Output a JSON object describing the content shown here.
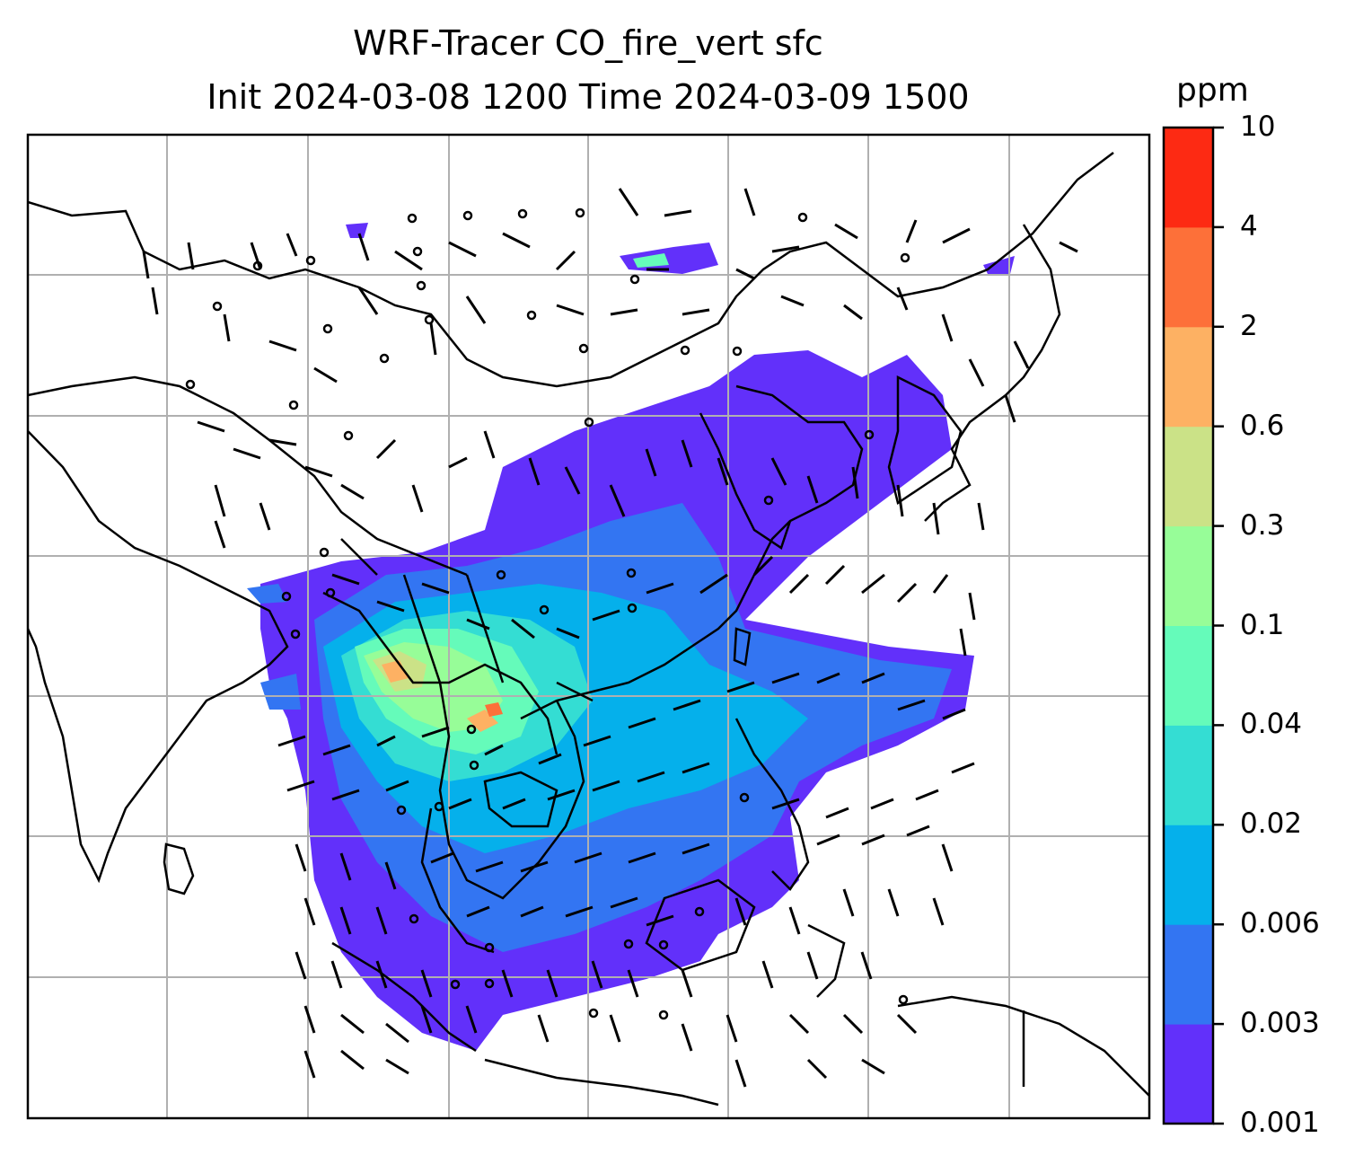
{
  "title": {
    "line1": "WRF-Tracer CO_fire_vert sfc",
    "line2": "Init 2024-03-08 1200 Time 2024-03-09 1500"
  },
  "colorbar": {
    "unit": "ppm",
    "ticks": [
      "0.001",
      "0.003",
      "0.006",
      "0.02",
      "0.04",
      "0.1",
      "0.3",
      "0.6",
      "2",
      "4",
      "10"
    ],
    "colors": [
      "#6230fa",
      "#3375f2",
      "#05b0eb",
      "#34ddd3",
      "#65fbba",
      "#97fd98",
      "#cbe287",
      "#fdb163",
      "#fd7039",
      "#fd2a13"
    ]
  },
  "chart_data": {
    "type": "heatmap",
    "variable": "CO_fire_vert sfc",
    "units": "ppm",
    "levels": [
      0.001,
      0.003,
      0.006,
      0.02,
      0.04,
      0.1,
      0.3,
      0.6,
      2,
      4,
      10
    ],
    "overlays": [
      "wind barbs",
      "coastlines",
      "country borders",
      "lat/lon gridlines"
    ],
    "grid": true
  },
  "colors": {
    "gridline": "#b0b0b0",
    "coastline": "#000000"
  }
}
